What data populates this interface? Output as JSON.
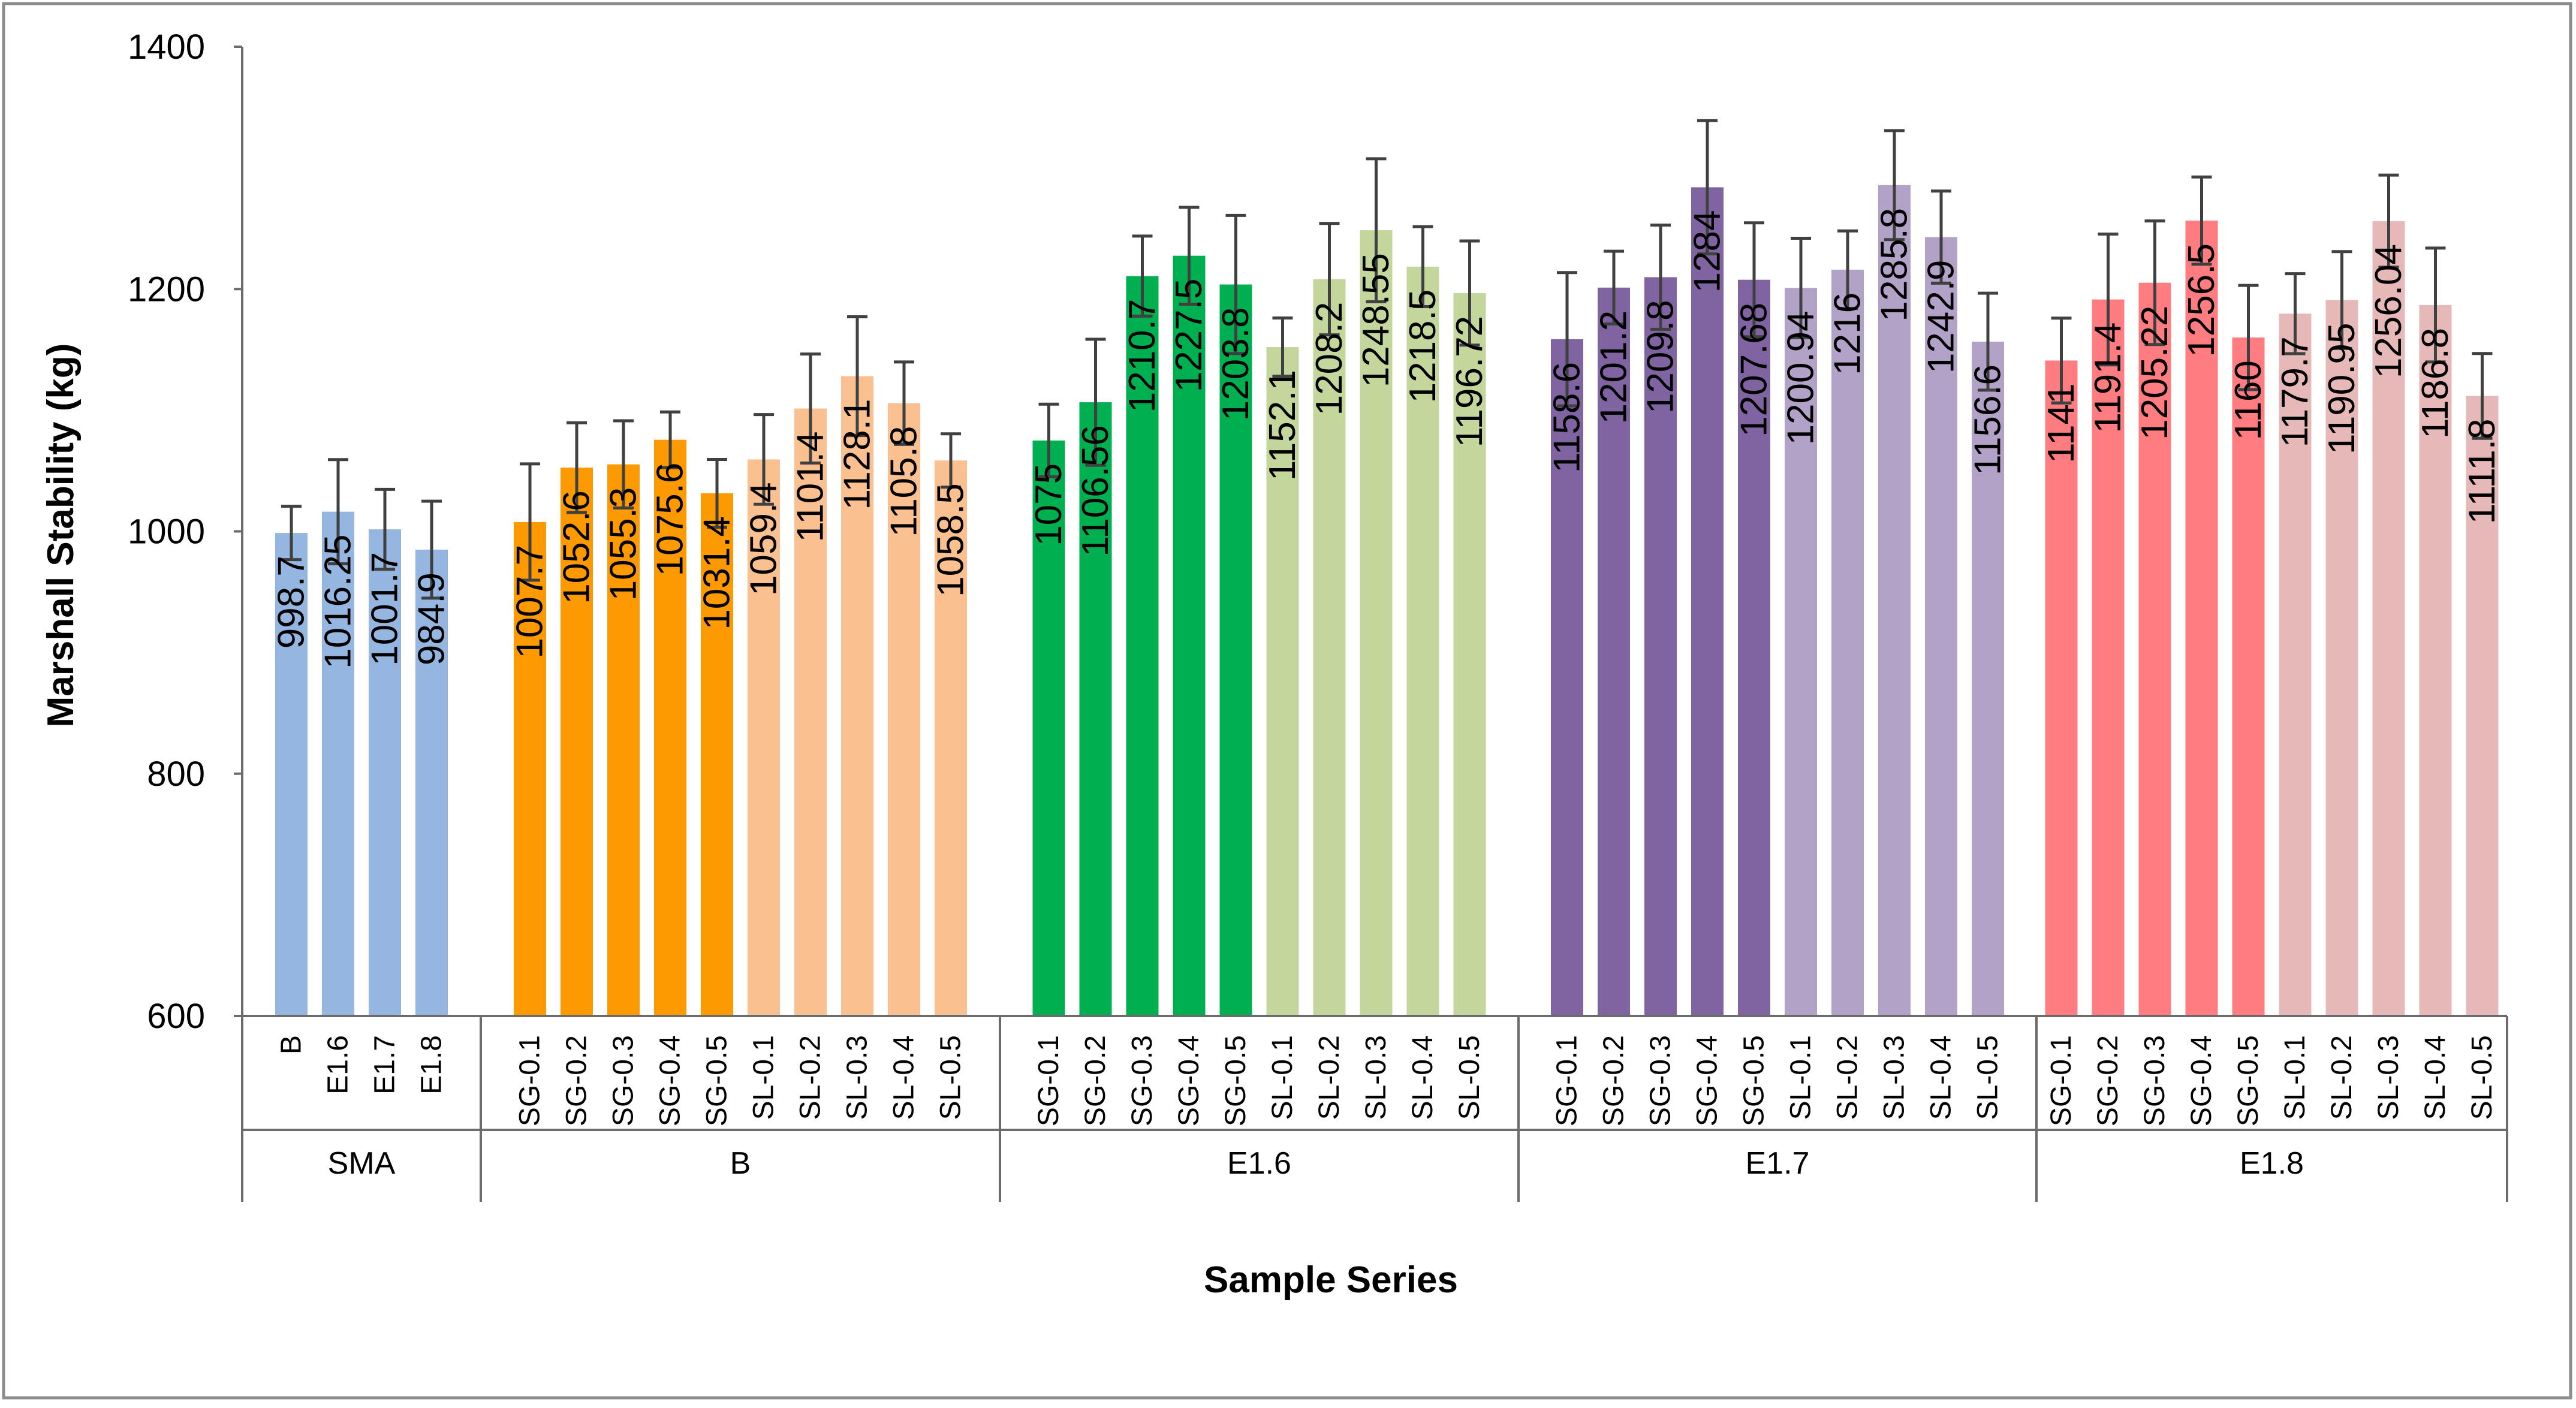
{
  "chart_data": {
    "type": "bar",
    "title": "",
    "xlabel": "Sample Series",
    "ylabel": "Marshall Stability (kg)",
    "ylim": [
      600,
      1400
    ],
    "yticks": [
      600,
      800,
      1000,
      1200,
      1400
    ],
    "grid": false,
    "groups": [
      {
        "name": "SMA",
        "bars": [
          {
            "label": "B",
            "value": 998.7,
            "value_label": "998.7",
            "err": 22,
            "color": "#95b6e0"
          },
          {
            "label": "E1.6",
            "value": 1016.25,
            "value_label": "1016.25",
            "err": 43,
            "color": "#95b6e0"
          },
          {
            "label": "E1.7",
            "value": 1001.7,
            "value_label": "1001.7",
            "err": 33,
            "color": "#95b6e0"
          },
          {
            "label": "E1.8",
            "value": 984.9,
            "value_label": "984.9",
            "err": 40,
            "color": "#95b6e0"
          }
        ]
      },
      {
        "name": "B",
        "bars": [
          {
            "label": "SG-0.1",
            "value": 1007.7,
            "value_label": "1007.7",
            "err": 48,
            "color": "#fe9a01"
          },
          {
            "label": "SG-0.2",
            "value": 1052.6,
            "value_label": "1052.6",
            "err": 37,
            "color": "#fe9a01"
          },
          {
            "label": "SG-0.3",
            "value": 1055.3,
            "value_label": "1055.3",
            "err": 36,
            "color": "#fe9a01"
          },
          {
            "label": "SG-0.4",
            "value": 1075.6,
            "value_label": "1075.6",
            "err": 23,
            "color": "#fe9a01"
          },
          {
            "label": "SG-0.5",
            "value": 1031.4,
            "value_label": "1031.4",
            "err": 28,
            "color": "#fe9a01"
          },
          {
            "label": "SL-0.1",
            "value": 1059.4,
            "value_label": "1059.4",
            "err": 37,
            "color": "#fac08f"
          },
          {
            "label": "SL-0.2",
            "value": 1101.4,
            "value_label": "1101.4",
            "err": 45,
            "color": "#fac08f"
          },
          {
            "label": "SL-0.3",
            "value": 1128.1,
            "value_label": "1128.1",
            "err": 49,
            "color": "#fac08f"
          },
          {
            "label": "SL-0.4",
            "value": 1105.8,
            "value_label": "1105.8",
            "err": 34,
            "color": "#fac08f"
          },
          {
            "label": "SL-0.5",
            "value": 1058.5,
            "value_label": "1058.5",
            "err": 22,
            "color": "#fac08f"
          }
        ]
      },
      {
        "name": "E1.6",
        "bars": [
          {
            "label": "SG-0.1",
            "value": 1075,
            "value_label": "1075",
            "err": 30,
            "color": "#00b050"
          },
          {
            "label": "SG-0.2",
            "value": 1106.56,
            "value_label": "1106.56",
            "err": 52,
            "color": "#00b050"
          },
          {
            "label": "SG-0.3",
            "value": 1210.7,
            "value_label": "1210.7",
            "err": 33,
            "color": "#00b050"
          },
          {
            "label": "SG-0.4",
            "value": 1227.5,
            "value_label": "1227.5",
            "err": 40,
            "color": "#00b050"
          },
          {
            "label": "SG-0.5",
            "value": 1203.8,
            "value_label": "1203.8",
            "err": 57,
            "color": "#00b050"
          },
          {
            "label": "SL-0.1",
            "value": 1152.1,
            "value_label": "1152.1",
            "err": 24,
            "color": "#c3d69b"
          },
          {
            "label": "SL-0.2",
            "value": 1208.2,
            "value_label": "1208.2",
            "err": 46,
            "color": "#c3d69b"
          },
          {
            "label": "SL-0.3",
            "value": 1248.55,
            "value_label": "1248.55",
            "err": 59,
            "color": "#c3d69b"
          },
          {
            "label": "SL-0.4",
            "value": 1218.5,
            "value_label": "1218.5",
            "err": 33,
            "color": "#c3d69b"
          },
          {
            "label": "SL-0.5",
            "value": 1196.72,
            "value_label": "1196.72",
            "err": 43,
            "color": "#c3d69b"
          }
        ]
      },
      {
        "name": "E1.7",
        "bars": [
          {
            "label": "SG-0.1",
            "value": 1158.6,
            "value_label": "1158.6",
            "err": 55,
            "color": "#8064a2"
          },
          {
            "label": "SG-0.2",
            "value": 1201.2,
            "value_label": "1201.2",
            "err": 30,
            "color": "#8064a2"
          },
          {
            "label": "SG-0.3",
            "value": 1209.8,
            "value_label": "1209.8",
            "err": 43,
            "color": "#8064a2"
          },
          {
            "label": "SG-0.4",
            "value": 1284,
            "value_label": "1284",
            "err": 55,
            "color": "#8064a2"
          },
          {
            "label": "SG-0.5",
            "value": 1207.68,
            "value_label": "1207.68",
            "err": 47,
            "color": "#8064a2"
          },
          {
            "label": "SL-0.1",
            "value": 1200.94,
            "value_label": "1200.94",
            "err": 41,
            "color": "#b3a2c7"
          },
          {
            "label": "SL-0.2",
            "value": 1216,
            "value_label": "1216",
            "err": 32,
            "color": "#b3a2c7"
          },
          {
            "label": "SL-0.3",
            "value": 1285.8,
            "value_label": "1285.8",
            "err": 45,
            "color": "#b3a2c7"
          },
          {
            "label": "SL-0.4",
            "value": 1242.9,
            "value_label": "1242.9",
            "err": 38,
            "color": "#b3a2c7"
          },
          {
            "label": "SL-0.5",
            "value": 1156.6,
            "value_label": "1156.6",
            "err": 40,
            "color": "#b3a2c7"
          }
        ]
      },
      {
        "name": "E1.8",
        "bars": [
          {
            "label": "SG-0.1",
            "value": 1141,
            "value_label": "1141",
            "err": 35,
            "color": "#ff7c80"
          },
          {
            "label": "SG-0.2",
            "value": 1191.4,
            "value_label": "1191.4",
            "err": 54,
            "color": "#ff7c80"
          },
          {
            "label": "SG-0.3",
            "value": 1205.22,
            "value_label": "1205.22",
            "err": 51,
            "color": "#ff7c80"
          },
          {
            "label": "SG-0.4",
            "value": 1256.5,
            "value_label": "1256.5",
            "err": 36,
            "color": "#ff7c80"
          },
          {
            "label": "SG-0.5",
            "value": 1160,
            "value_label": "1160",
            "err": 43,
            "color": "#ff7c80"
          },
          {
            "label": "SL-0.1",
            "value": 1179.7,
            "value_label": "1179.7",
            "err": 33,
            "color": "#e6b9b8"
          },
          {
            "label": "SL-0.2",
            "value": 1190.95,
            "value_label": "1190.95",
            "err": 40,
            "color": "#e6b9b8"
          },
          {
            "label": "SL-0.3",
            "value": 1256.04,
            "value_label": "1256.04",
            "err": 38,
            "color": "#e6b9b8"
          },
          {
            "label": "SL-0.4",
            "value": 1186.8,
            "value_label": "1186.8",
            "err": 47,
            "color": "#e6b9b8"
          },
          {
            "label": "SL-0.5",
            "value": 1111.8,
            "value_label": "1111.8",
            "err": 35,
            "color": "#e6b9b8"
          }
        ]
      }
    ]
  }
}
